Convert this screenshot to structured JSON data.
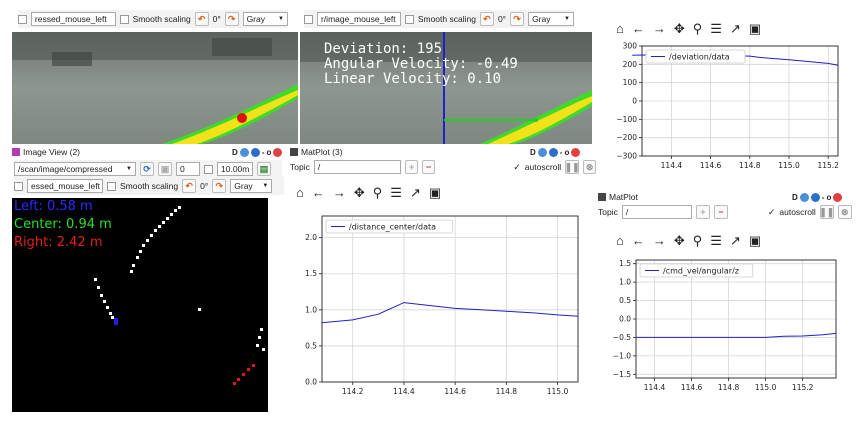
{
  "top_left_toolbar": {
    "topic_field": "ressed_mouse_left",
    "smooth_label": "Smooth scaling",
    "rotation": "0°",
    "color_select": "Gray"
  },
  "top_mid_toolbar": {
    "topic_field": "r/image_mouse_left",
    "smooth_label": "Smooth scaling",
    "rotation": "0°",
    "color_select": "Gray"
  },
  "overlay": {
    "deviation": "Deviation: 195",
    "angular": "Angular Velocity: -0.49",
    "linear": "Linear Velocity: 0.10"
  },
  "image_view2": {
    "title": "Image View (2)",
    "dock": "D",
    "topic": "/scan/image/compressed",
    "num_value": "0",
    "range_value": "10.00m",
    "mouse_field": "essed_mouse_left",
    "smooth_label": "Smooth scaling",
    "rotation": "0°",
    "color_select": "Gray",
    "readouts": {
      "left": "Left: 0.58 m",
      "center": "Center: 0.94 m",
      "right": "Right: 2.42 m"
    }
  },
  "matplot3": {
    "title": "MatPlot (3)",
    "dock": "D",
    "topic_label": "Topic",
    "topic_value": "/",
    "autoscroll": "autoscroll"
  },
  "matplot": {
    "title": "MatPlot",
    "dock": "D",
    "topic_label": "Topic",
    "topic_value": "/",
    "autoscroll": "autoscroll"
  },
  "icons": [
    "home-icon",
    "back-icon",
    "forward-icon",
    "pan-icon",
    "zoom-icon",
    "subplots-icon",
    "axes-edit-icon",
    "save-icon"
  ],
  "colors": {
    "line": "#1f1fcc",
    "yellow": "#f3e21a",
    "green_edge": "#3edc2a",
    "red_dot": "#e01010"
  },
  "chart_data": [
    {
      "type": "line",
      "legend": "/deviation/data",
      "x": [
        114.2,
        114.4,
        114.6,
        114.8,
        114.85,
        115.0,
        115.2,
        115.25
      ],
      "y": [
        250,
        252,
        250,
        245,
        238,
        225,
        205,
        195
      ],
      "xticks": [
        "114.4",
        "114.6",
        "114.8",
        "115.0",
        "115.2"
      ],
      "yticks": [
        "300",
        "200",
        "100",
        "0",
        "−100",
        "−200",
        "−300"
      ],
      "xlim": [
        114.25,
        115.25
      ],
      "ylim": [
        -300,
        300
      ],
      "grid": true,
      "legend_position": "upper-left"
    },
    {
      "type": "line",
      "legend": "/distance_center/data",
      "x": [
        114.08,
        114.2,
        114.3,
        114.4,
        114.5,
        114.6,
        114.7,
        114.8,
        114.9,
        115.0,
        115.08
      ],
      "y": [
        0.82,
        0.86,
        0.94,
        1.1,
        1.06,
        1.02,
        1.0,
        0.98,
        0.96,
        0.93,
        0.91
      ],
      "xticks": [
        "114.2",
        "114.4",
        "114.6",
        "114.8",
        "115.0"
      ],
      "yticks": [
        "2.0",
        "1.5",
        "1.0",
        "0.5",
        "0.0"
      ],
      "xlim": [
        114.08,
        115.08
      ],
      "ylim": [
        0,
        2.3
      ],
      "grid": true,
      "legend_position": "upper-left"
    },
    {
      "type": "line",
      "legend": "/cmd_vel/angular/z",
      "x": [
        114.3,
        114.5,
        114.7,
        114.9,
        115.0,
        115.1,
        115.2,
        115.3,
        115.38
      ],
      "y": [
        -0.5,
        -0.5,
        -0.5,
        -0.5,
        -0.5,
        -0.47,
        -0.46,
        -0.43,
        -0.39
      ],
      "xticks": [
        "114.4",
        "114.6",
        "114.8",
        "115.0",
        "115.2"
      ],
      "yticks": [
        "1.5",
        "1.0",
        "0.5",
        "0.0",
        "−0.5",
        "−1.0",
        "−1.5"
      ],
      "xlim": [
        114.3,
        115.38
      ],
      "ylim": [
        -1.6,
        1.6
      ],
      "grid": true,
      "legend_position": "upper-left"
    }
  ]
}
